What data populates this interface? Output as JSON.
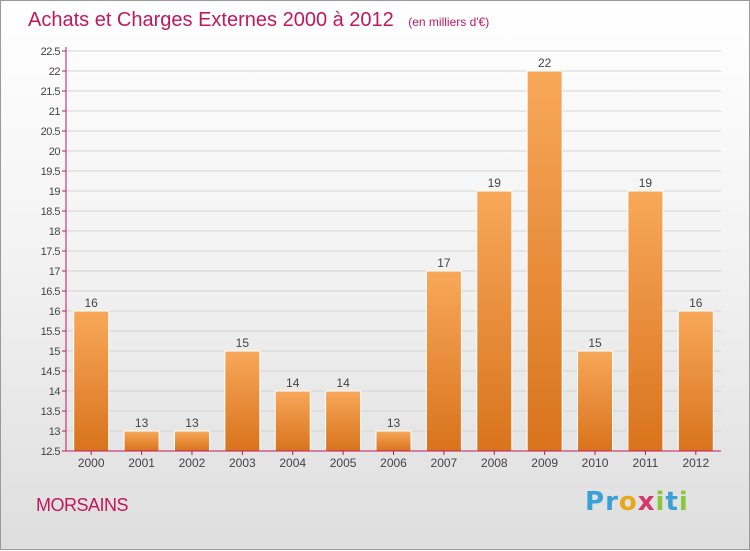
{
  "header": {
    "title": "Achats et Charges Externes 2000 à 2012",
    "unit": "(en milliers d'€)"
  },
  "footer": {
    "place": "MORSAINS",
    "logo_letters": [
      "P",
      "r",
      "o",
      "x",
      "i",
      "t",
      "i"
    ],
    "logo_colors": [
      "#3aa0d8",
      "#3aa0d8",
      "#e8a81c",
      "#d23a6a",
      "#8cc63e",
      "#3aa0d8",
      "#8cc63e"
    ]
  },
  "colors": {
    "title": "#c2185b",
    "bar_light": "#f8a85a",
    "bar_dark": "#d9731c",
    "axis": "#c2185b",
    "grid": "#d4d4d4",
    "text": "#444444"
  },
  "chart_data": {
    "type": "bar",
    "categories": [
      "2000",
      "2001",
      "2002",
      "2003",
      "2004",
      "2005",
      "2006",
      "2007",
      "2008",
      "2009",
      "2010",
      "2011",
      "2012"
    ],
    "values": [
      16,
      13,
      13,
      15,
      14,
      14,
      13,
      17,
      19,
      22,
      15,
      19,
      16
    ],
    "data_labels": [
      "16",
      "13",
      "13",
      "15",
      "14",
      "14",
      "13",
      "17",
      "19",
      "22",
      "15",
      "19",
      "16"
    ],
    "ylim": [
      12.5,
      22.5
    ],
    "yticks": [
      "12.5",
      "13",
      "13.5",
      "14",
      "14.5",
      "15",
      "15.5",
      "16",
      "16.5",
      "17",
      "17.5",
      "18",
      "18.5",
      "19",
      "19.5",
      "20",
      "20.5",
      "21",
      "21.5",
      "22",
      "22.5"
    ],
    "grid": true,
    "xlabel": "",
    "ylabel": ""
  }
}
